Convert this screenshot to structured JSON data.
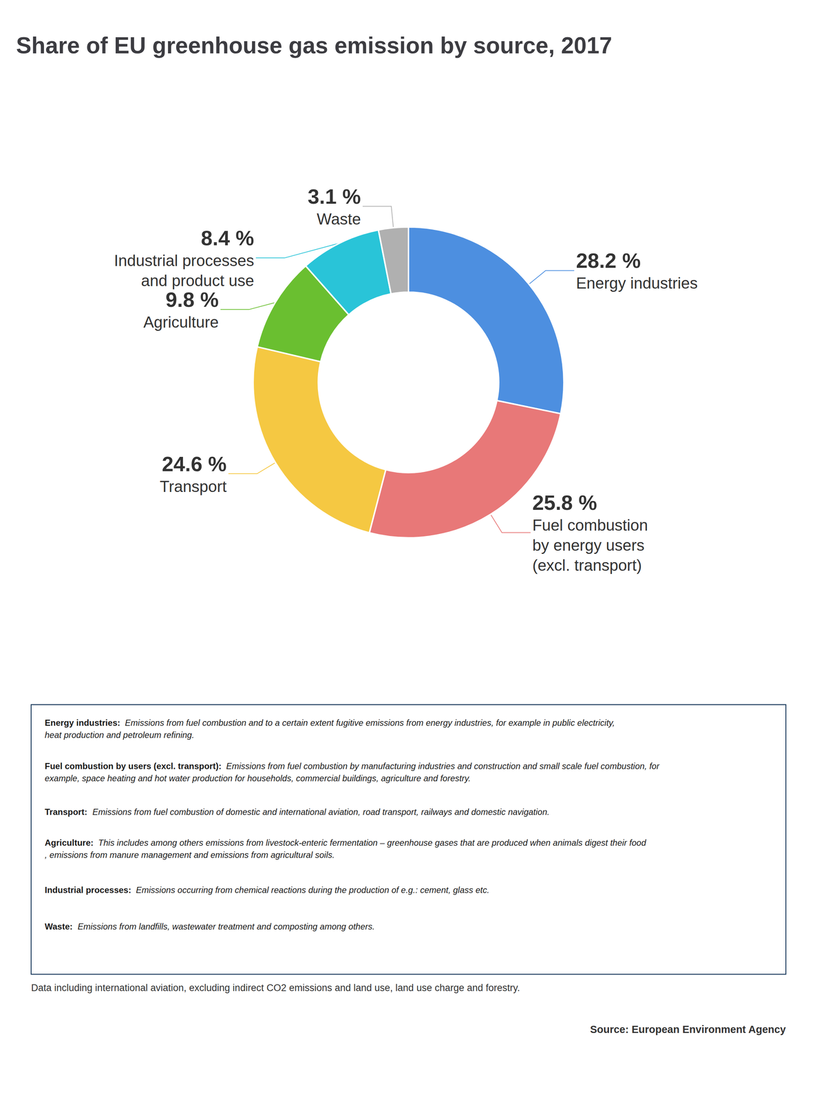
{
  "chart_data": {
    "type": "pie",
    "title": "Share of EU greenhouse gas emission by source, 2017",
    "categories": [
      "Energy industries",
      "Fuel combustion\nby energy users\n(excl. transport)",
      "Transport",
      "Agriculture",
      "Industrial processes\nand product use",
      "Waste"
    ],
    "values": [
      28.2,
      25.8,
      24.6,
      9.8,
      8.4,
      3.1
    ],
    "value_labels": [
      "28.2 %",
      "25.8 %",
      "24.6 %",
      "9.8 %",
      "8.4 %",
      "3.1 %"
    ],
    "colors": [
      "#4d8fe0",
      "#e87878",
      "#f5c842",
      "#6abf30",
      "#29c4d8",
      "#b0b0b0"
    ],
    "data_labels": true,
    "annotations": [
      {
        "label": "Energy industries:",
        "text": "Emissions from fuel combustion and to a certain extent fugitive emissions from energy industries, for example in public electricity, heat production and petroleum refining."
      },
      {
        "label": "Fuel combustion by users (excl. transport):",
        "text": "Emissions from fuel combustion by manufacturing industries and construction and small scale fuel combustion, for example, space heating and hot water production for households, commercial buildings, agriculture and forestry."
      },
      {
        "label": "Transport:",
        "text": "Emissions from fuel combustion of domestic and international aviation, road transport, railways and domestic navigation."
      },
      {
        "label": "Agriculture:",
        "text": "This includes among others emissions from livestock-enteric fermentation – greenhouse gases that are produced when animals digest their food, emissions from manure management and emissions from agricultural soils."
      },
      {
        "label": "Industrial processes:",
        "text": "Emissions occurring from chemical reactions during the production of e.g.: cement, glass etc."
      },
      {
        "label": "Waste:",
        "text": "Emissions from landfills, wastewater treatment and composting among others."
      }
    ],
    "footer": "Data including international aviation, excluding indirect CO2 emissions and land use, land use charge and forestry.",
    "source": "Source: European Environment Agency"
  }
}
